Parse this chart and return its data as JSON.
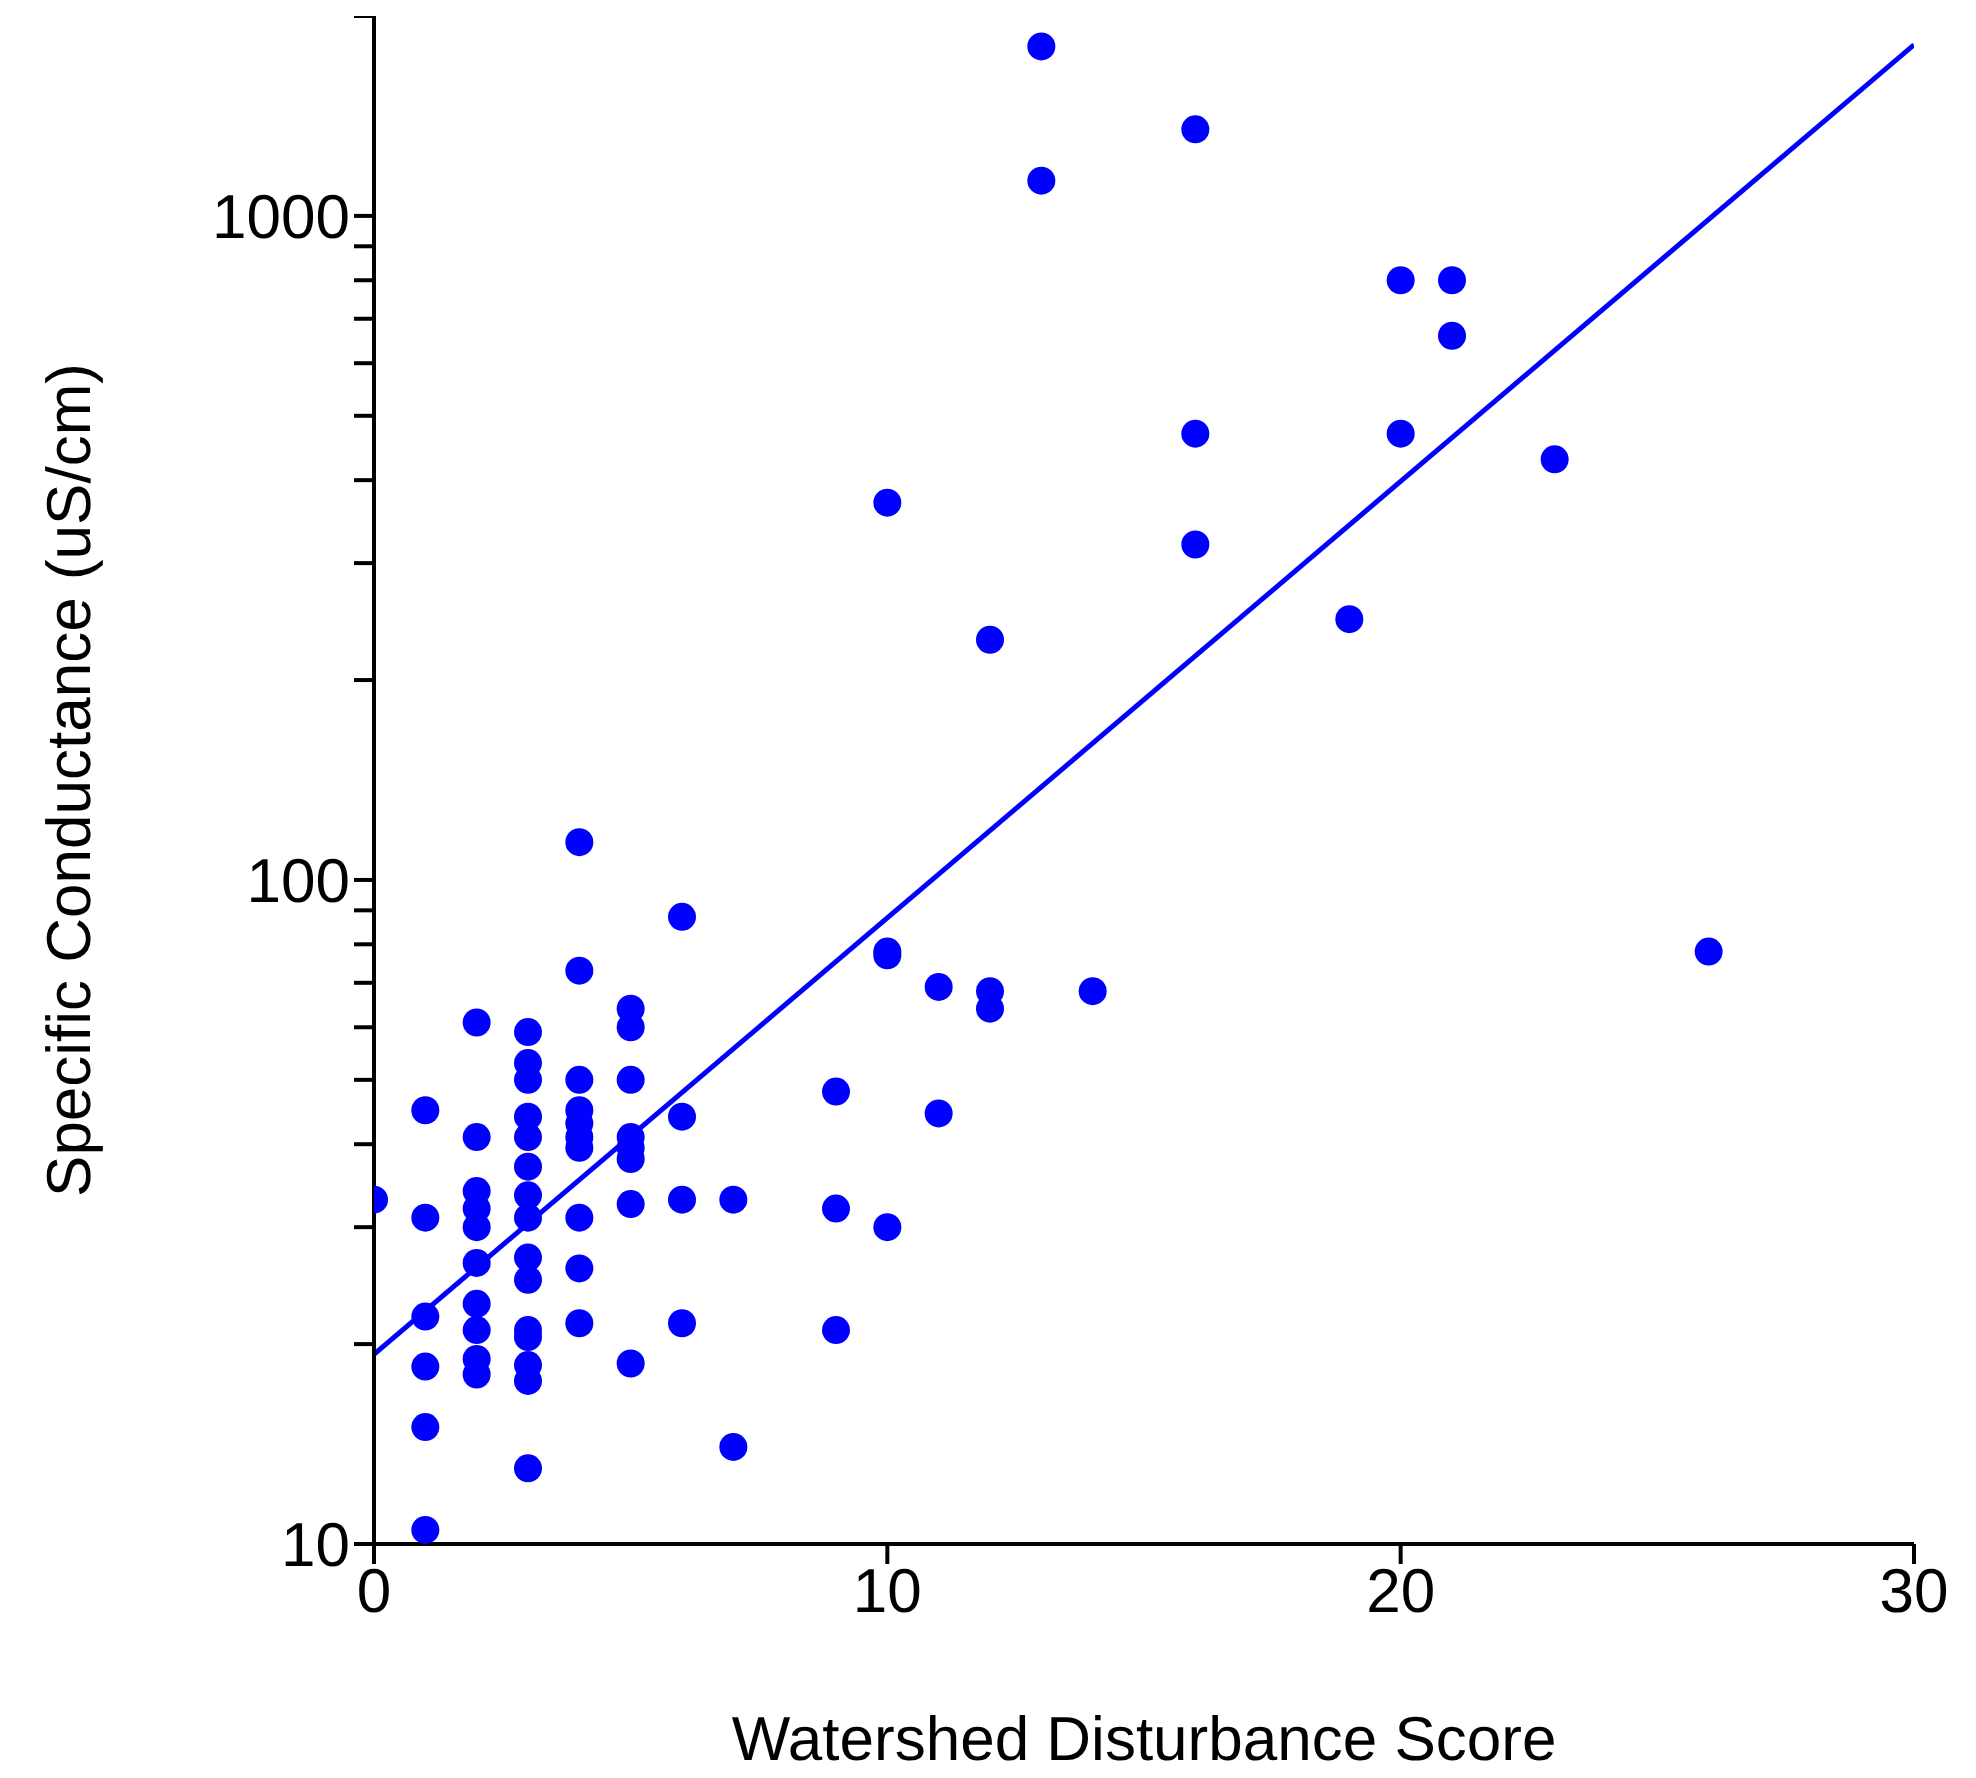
{
  "chart_data": {
    "type": "scatter",
    "xlabel": "Watershed Disturbance Score",
    "ylabel": "Specific Conductance (uS/cm)",
    "log": "y",
    "grid": false,
    "legend": false,
    "xlim": [
      0,
      30
    ],
    "xticks": [
      0,
      10,
      20,
      30
    ],
    "ylim": [
      10,
      2000
    ],
    "yticks": [
      10,
      {
        "value": 20,
        "label": null
      },
      {
        "value": 30,
        "label": null
      },
      {
        "value": 40,
        "label": null
      },
      {
        "value": 50,
        "label": null
      },
      {
        "value": 60,
        "label": null
      },
      {
        "value": 70,
        "label": null
      },
      {
        "value": 80,
        "label": null
      },
      {
        "value": 90,
        "label": null
      },
      100,
      {
        "value": 200,
        "label": null
      },
      {
        "value": 300,
        "label": null
      },
      {
        "value": 400,
        "label": null
      },
      {
        "value": 500,
        "label": null
      },
      {
        "value": 600,
        "label": null
      },
      {
        "value": 700,
        "label": null
      },
      {
        "value": 800,
        "label": null
      },
      {
        "value": 900,
        "label": null
      },
      1000,
      {
        "value": 2000,
        "label": null
      }
    ],
    "series": [
      {
        "color": "#0000ff",
        "marker": "circle",
        "x": [
          0,
          1,
          1,
          1,
          1,
          1,
          1,
          2,
          2,
          2,
          2,
          2,
          2,
          2,
          2,
          2,
          2,
          3,
          3,
          3,
          3,
          3,
          3,
          3,
          3,
          3,
          3,
          3,
          3,
          3,
          3,
          3,
          4,
          4,
          4,
          4,
          4,
          4,
          4,
          4,
          4,
          4,
          5,
          5,
          5,
          5,
          5,
          5,
          5,
          5,
          6,
          6,
          6,
          6,
          7,
          7,
          9,
          9,
          9,
          10,
          10,
          10,
          10,
          11,
          11,
          12,
          12,
          12,
          13,
          13,
          14,
          16,
          16,
          16,
          19,
          20,
          20,
          21,
          21,
          23,
          26
        ],
        "values": [
          33,
          45,
          31,
          22,
          18.5,
          15,
          10.5,
          61,
          41,
          34,
          32,
          30,
          26.5,
          23,
          21,
          19,
          18,
          59,
          53,
          50,
          44,
          41,
          37,
          33.5,
          31,
          27,
          25,
          21,
          20.5,
          18.6,
          17.6,
          13,
          114,
          73,
          50,
          45,
          43,
          41,
          39.5,
          31,
          26,
          21.5,
          64,
          60,
          50,
          41,
          39.5,
          38,
          32.5,
          18.7,
          88,
          44,
          33,
          21.5,
          33,
          14,
          48,
          32,
          21,
          370,
          78,
          77,
          30,
          69,
          44.5,
          230,
          68,
          64,
          1800,
          1130,
          68,
          1350,
          470,
          320,
          247,
          800,
          470,
          800,
          660,
          430,
          78
        ]
      },
      {
        "type": "line",
        "color": "#0000ff",
        "marker": "none",
        "x": [
          0,
          30
        ],
        "values": [
          19.3,
          1810
        ]
      }
    ]
  }
}
